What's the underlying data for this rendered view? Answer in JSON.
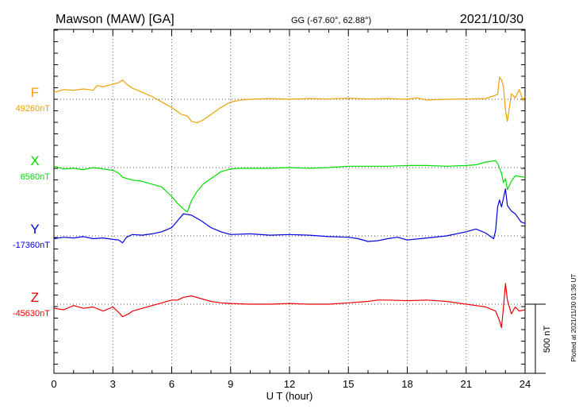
{
  "header": {
    "station": "Mawson (MAW)  [GA]",
    "coords": "GG (-67.60°,  62.88°)",
    "date": "2021/10/30"
  },
  "footer": {
    "plotted_at": "Plotted at 2021/11/30 01:36 UT"
  },
  "chart_data": {
    "type": "line",
    "title": "Mawson (MAW)  [GA]",
    "xlabel": "U T (hour)",
    "xlim": [
      0,
      24
    ],
    "x_ticks": [
      0,
      3,
      6,
      9,
      12,
      15,
      18,
      21,
      24
    ],
    "x_tick_labels": [
      "0",
      "3",
      "6",
      "9",
      "12",
      "15",
      "18",
      "21",
      "24"
    ],
    "scale_bar": "500 nT",
    "grid": "dotted vertical at every 3 hours",
    "series": [
      {
        "name": "F",
        "color": "#f0a000",
        "baseline_label": "49260nT",
        "baseline_nT": 49260,
        "x": [
          0,
          0.5,
          1,
          1.5,
          2,
          2.2,
          2.5,
          3,
          3.3,
          3.5,
          3.7,
          4,
          4.5,
          5,
          5.5,
          6,
          6.2,
          6.5,
          6.8,
          7,
          7.3,
          7.6,
          8,
          8.5,
          9,
          9.5,
          10,
          11,
          12,
          13,
          14,
          15,
          16,
          17,
          18,
          18.5,
          19,
          20,
          21,
          22,
          22.5,
          22.6,
          22.7,
          22.8,
          22.9,
          23,
          23.1,
          23.2,
          23.3,
          23.5,
          23.7,
          23.9,
          24
        ],
        "y": [
          49310,
          49330,
          49325,
          49335,
          49325,
          49360,
          49350,
          49370,
          49380,
          49400,
          49370,
          49340,
          49310,
          49280,
          49240,
          49200,
          49180,
          49150,
          49140,
          49100,
          49090,
          49110,
          49150,
          49200,
          49240,
          49255,
          49260,
          49265,
          49260,
          49265,
          49262,
          49268,
          49262,
          49265,
          49260,
          49270,
          49255,
          49260,
          49262,
          49265,
          49290,
          49295,
          49420,
          49400,
          49350,
          49180,
          49100,
          49200,
          49300,
          49270,
          49330,
          49250,
          49280
        ]
      },
      {
        "name": "X",
        "color": "#00dd00",
        "baseline_label": "6560nT",
        "baseline_nT": 6560,
        "x": [
          0,
          0.5,
          1,
          1.5,
          2,
          2.5,
          3,
          3.3,
          3.5,
          4,
          4.5,
          5,
          5.5,
          6,
          6.3,
          6.6,
          6.8,
          7,
          7.3,
          7.6,
          8,
          8.5,
          9,
          9.5,
          10,
          11,
          12,
          13,
          14,
          15,
          16,
          17,
          18,
          19,
          20,
          21,
          21.5,
          22,
          22.5,
          22.6,
          22.8,
          22.9,
          23,
          23.1,
          23.3,
          23.5,
          24
        ],
        "y": [
          6570,
          6550,
          6555,
          6545,
          6560,
          6550,
          6540,
          6520,
          6490,
          6470,
          6460,
          6440,
          6420,
          6350,
          6300,
          6260,
          6240,
          6320,
          6390,
          6440,
          6480,
          6530,
          6550,
          6555,
          6555,
          6555,
          6560,
          6555,
          6560,
          6570,
          6570,
          6570,
          6575,
          6575,
          6570,
          6575,
          6580,
          6600,
          6610,
          6590,
          6520,
          6450,
          6480,
          6400,
          6460,
          6500,
          6490
        ]
      },
      {
        "name": "Y",
        "color": "#0000dd",
        "baseline_label": "-17360nT",
        "baseline_nT": -17360,
        "x": [
          0,
          0.5,
          1,
          1.5,
          2,
          2.5,
          3,
          3.3,
          3.5,
          3.7,
          4,
          4.5,
          5,
          5.5,
          6,
          6.3,
          6.6,
          7,
          7.5,
          8,
          8.5,
          9,
          10,
          11,
          12,
          13,
          14,
          15,
          15.5,
          16,
          16.5,
          17,
          17.5,
          18,
          19,
          20,
          21,
          21.5,
          22,
          22.4,
          22.5,
          22.6,
          22.7,
          22.8,
          23,
          23.1,
          23.3,
          23.5,
          23.8,
          24
        ],
        "y": [
          -17380,
          -17370,
          -17375,
          -17365,
          -17380,
          -17375,
          -17385,
          -17390,
          -17410,
          -17370,
          -17350,
          -17355,
          -17345,
          -17330,
          -17300,
          -17250,
          -17200,
          -17210,
          -17250,
          -17300,
          -17330,
          -17350,
          -17345,
          -17355,
          -17350,
          -17355,
          -17365,
          -17370,
          -17380,
          -17400,
          -17395,
          -17380,
          -17370,
          -17390,
          -17375,
          -17360,
          -17330,
          -17310,
          -17340,
          -17380,
          -17320,
          -17150,
          -17100,
          -17150,
          -17020,
          -17140,
          -17180,
          -17200,
          -17260,
          -17270
        ]
      },
      {
        "name": "Z",
        "color": "#ee0000",
        "baseline_label": "-45630nT",
        "baseline_nT": -45630,
        "x": [
          0,
          0.5,
          1,
          1.5,
          2,
          2.5,
          3,
          3.3,
          3.5,
          3.8,
          4,
          4.5,
          5,
          5.5,
          6,
          6.3,
          6.6,
          7,
          7.5,
          8,
          8.5,
          9,
          10,
          11,
          12,
          13,
          14,
          15,
          16,
          16.5,
          17,
          18,
          19,
          20,
          21,
          21.5,
          22,
          22.5,
          22.7,
          22.8,
          22.9,
          23,
          23.1,
          23.3,
          23.5,
          23.7,
          24
        ],
        "y": [
          -45660,
          -45670,
          -45640,
          -45660,
          -45650,
          -45680,
          -45650,
          -45690,
          -45720,
          -45700,
          -45680,
          -45660,
          -45640,
          -45620,
          -45600,
          -45600,
          -45580,
          -45570,
          -45590,
          -45610,
          -45620,
          -45625,
          -45630,
          -45630,
          -45625,
          -45630,
          -45630,
          -45620,
          -45610,
          -45600,
          -45600,
          -45605,
          -45600,
          -45610,
          -45630,
          -45640,
          -45650,
          -45680,
          -45750,
          -45800,
          -45650,
          -45480,
          -45600,
          -45700,
          -45650,
          -45680,
          -45670
        ]
      }
    ]
  }
}
